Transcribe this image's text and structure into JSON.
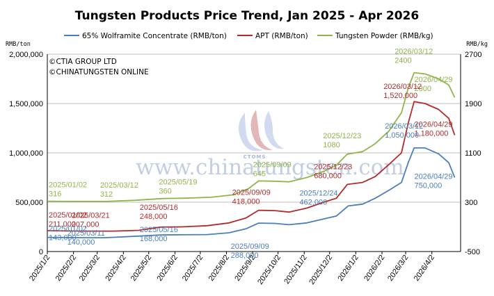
{
  "chart_data": {
    "type": "line",
    "title": "Tungsten Products Price Trend, Jan 2025 - Apr 2026",
    "left_unit": "RMB/ton",
    "right_unit": "RMB/kg",
    "y_left": {
      "min": 0,
      "max": 2000000,
      "ticks": [
        "0",
        "500,000",
        "1,000,000",
        "1,500,000",
        "2,000,000"
      ]
    },
    "y_right": {
      "min": -500,
      "max": 2700,
      "ticks": [
        "-500",
        "300",
        "1100",
        "1900",
        "2700"
      ]
    },
    "x_ticks": [
      "2025/1/2",
      "2025/2/2",
      "2025/3/2",
      "2025/4/2",
      "2025/5/2",
      "2025/6/2",
      "2025/7/2",
      "2025/8/2",
      "2025/9/2",
      "2025/10/2",
      "2025/11/2",
      "2025/12/2",
      "2026/1/2",
      "2026/2/2",
      "2026/3/2",
      "2026/4/2"
    ],
    "legend_position": "top",
    "grid": "horizontal",
    "copyright": [
      "©CTIA GROUP LTD",
      "©CHINATUNGSTEN ONLINE"
    ],
    "watermark": {
      "text": "www.chinatungsten.com",
      "logo_text": "CTOMS"
    },
    "series": [
      {
        "name": "65% Wolframite Concentrate (RMB/ton)",
        "axis": "left",
        "color": "#4a7ebb",
        "points": [
          [
            "2025-01-02",
            143000
          ],
          [
            "2025-01-20",
            142000
          ],
          [
            "2025-02-15",
            140000
          ],
          [
            "2025-03-11",
            140000
          ],
          [
            "2025-04-05",
            150000
          ],
          [
            "2025-05-16",
            168000
          ],
          [
            "2025-06-10",
            170000
          ],
          [
            "2025-07-10",
            172000
          ],
          [
            "2025-08-05",
            190000
          ],
          [
            "2025-08-25",
            230000
          ],
          [
            "2025-09-09",
            288000
          ],
          [
            "2025-09-28",
            285000
          ],
          [
            "2025-10-15",
            272000
          ],
          [
            "2025-11-05",
            290000
          ],
          [
            "2025-11-25",
            330000
          ],
          [
            "2025-12-10",
            360000
          ],
          [
            "2025-12-24",
            462000
          ],
          [
            "2026-01-10",
            480000
          ],
          [
            "2026-01-25",
            540000
          ],
          [
            "2026-02-10",
            620000
          ],
          [
            "2026-02-25",
            700000
          ],
          [
            "2026-03-05",
            900000
          ],
          [
            "2026-03-12",
            1050000
          ],
          [
            "2026-03-25",
            1050000
          ],
          [
            "2026-04-10",
            990000
          ],
          [
            "2026-04-22",
            900000
          ],
          [
            "2026-04-29",
            750000
          ]
        ]
      },
      {
        "name": "APT (RMB/ton)",
        "axis": "left",
        "color": "#b22a2a",
        "points": [
          [
            "2025-01-02",
            211000
          ],
          [
            "2025-02-10",
            207000
          ],
          [
            "2025-03-21",
            207000
          ],
          [
            "2025-04-20",
            215000
          ],
          [
            "2025-05-16",
            248000
          ],
          [
            "2025-06-10",
            250000
          ],
          [
            "2025-07-10",
            262000
          ],
          [
            "2025-08-05",
            290000
          ],
          [
            "2025-08-25",
            340000
          ],
          [
            "2025-09-09",
            418000
          ],
          [
            "2025-09-28",
            415000
          ],
          [
            "2025-10-15",
            400000
          ],
          [
            "2025-11-05",
            440000
          ],
          [
            "2025-11-25",
            500000
          ],
          [
            "2025-12-10",
            540000
          ],
          [
            "2025-12-23",
            680000
          ],
          [
            "2026-01-10",
            700000
          ],
          [
            "2026-01-25",
            760000
          ],
          [
            "2026-02-10",
            880000
          ],
          [
            "2026-02-25",
            1000000
          ],
          [
            "2026-03-05",
            1300000
          ],
          [
            "2026-03-12",
            1520000
          ],
          [
            "2026-03-25",
            1500000
          ],
          [
            "2026-04-10",
            1440000
          ],
          [
            "2026-04-22",
            1350000
          ],
          [
            "2026-04-29",
            1180000
          ]
        ]
      },
      {
        "name": "Tungsten Powder (RMB/kg)",
        "axis": "right",
        "color": "#8fb54a",
        "points": [
          [
            "2025-01-02",
            316
          ],
          [
            "2025-02-05",
            312
          ],
          [
            "2025-03-12",
            312
          ],
          [
            "2025-04-15",
            330
          ],
          [
            "2025-05-19",
            360
          ],
          [
            "2025-06-15",
            365
          ],
          [
            "2025-07-15",
            380
          ],
          [
            "2025-08-10",
            420
          ],
          [
            "2025-08-28",
            520
          ],
          [
            "2025-09-09",
            645
          ],
          [
            "2025-09-28",
            640
          ],
          [
            "2025-10-15",
            630
          ],
          [
            "2025-11-05",
            700
          ],
          [
            "2025-11-25",
            800
          ],
          [
            "2025-12-10",
            900
          ],
          [
            "2025-12-23",
            1080
          ],
          [
            "2026-01-10",
            1120
          ],
          [
            "2026-01-25",
            1250
          ],
          [
            "2026-02-10",
            1450
          ],
          [
            "2026-02-25",
            1750
          ],
          [
            "2026-03-05",
            2150
          ],
          [
            "2026-03-12",
            2400
          ],
          [
            "2026-03-25",
            2380
          ],
          [
            "2026-04-10",
            2300
          ],
          [
            "2026-04-22",
            2200
          ],
          [
            "2026-04-29",
            2000
          ]
        ]
      }
    ],
    "annotations": [
      {
        "series": 2,
        "date": "2025-01-02",
        "lines": [
          "2025/01/02",
          "316"
        ]
      },
      {
        "series": 2,
        "date": "2025-03-12",
        "lines": [
          "2025/03/12",
          "312"
        ]
      },
      {
        "series": 2,
        "date": "2025-05-19",
        "lines": [
          "2025/05/19",
          "360"
        ]
      },
      {
        "series": 2,
        "date": "2025-09-09",
        "lines": [
          "2025/09/09",
          "645"
        ]
      },
      {
        "series": 2,
        "date": "2025-12-23",
        "lines": [
          "2025/12/23",
          "1080"
        ]
      },
      {
        "series": 2,
        "date": "2026-03-12",
        "lines": [
          "2026/03/12",
          "2400"
        ]
      },
      {
        "series": 2,
        "date": "2026-04-29",
        "lines": [
          "2026/04/29",
          "2000"
        ]
      },
      {
        "series": 1,
        "date": "2025-01-02",
        "lines": [
          "2025/01/02",
          "211,000"
        ]
      },
      {
        "series": 1,
        "date": "2025-03-21",
        "lines": [
          "2025/03/21",
          "207,000"
        ]
      },
      {
        "series": 1,
        "date": "2025-05-16",
        "lines": [
          "2025/05/16",
          "248,000"
        ]
      },
      {
        "series": 1,
        "date": "2025-09-09",
        "lines": [
          "2025/09/09",
          "418,000"
        ]
      },
      {
        "series": 1,
        "date": "2025-12-23",
        "lines": [
          "2025/12/23",
          "680,000"
        ]
      },
      {
        "series": 1,
        "date": "2026-03-12",
        "lines": [
          "2026/03/12",
          "1,520,000"
        ]
      },
      {
        "series": 1,
        "date": "2026-04-29",
        "lines": [
          "2026/04/29",
          "1,180,000"
        ]
      },
      {
        "series": 0,
        "date": "2025-01-02",
        "lines": [
          "2025/01/02",
          "143,000"
        ]
      },
      {
        "series": 0,
        "date": "2025-03-11",
        "lines": [
          "2025/03/11",
          "140,000"
        ]
      },
      {
        "series": 0,
        "date": "2025-05-16",
        "lines": [
          "2025/05/16",
          "168,000"
        ]
      },
      {
        "series": 0,
        "date": "2025-09-09",
        "lines": [
          "2025/09/09",
          "288,000"
        ]
      },
      {
        "series": 0,
        "date": "2025-12-24",
        "lines": [
          "2025/12/24",
          "462,000"
        ]
      },
      {
        "series": 0,
        "date": "2026-03-12",
        "lines": [
          "2026/03/12",
          "1,050,000"
        ]
      },
      {
        "series": 0,
        "date": "2026-04-29",
        "lines": [
          "2026/04/29",
          "750,000"
        ]
      }
    ]
  }
}
